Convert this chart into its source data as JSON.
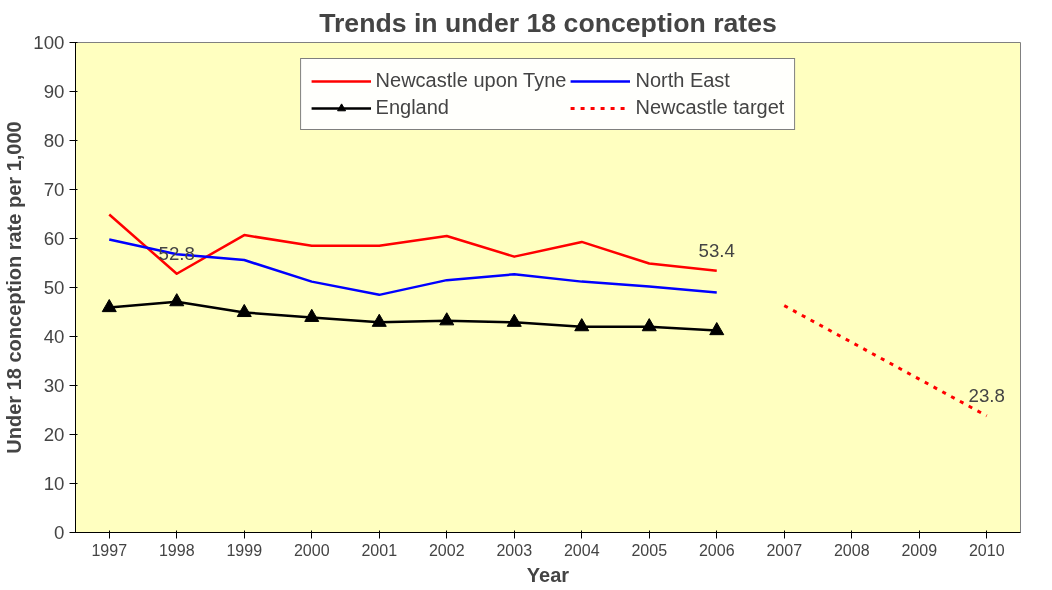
{
  "chart_data": {
    "type": "line",
    "title": "Trends in under 18 conception rates",
    "xlabel": "Year",
    "ylabel": "Under 18 conception rate per 1,000",
    "categories": [
      "1997",
      "1998",
      "1999",
      "2000",
      "2001",
      "2002",
      "2003",
      "2004",
      "2005",
      "2006",
      "2007",
      "2008",
      "2009",
      "2010"
    ],
    "series": [
      {
        "name": "Newcastle upon Tyne",
        "color": "#ff0000",
        "values": [
          64.9,
          52.8,
          60.7,
          58.5,
          58.5,
          60.5,
          56.3,
          59.3,
          54.9,
          53.4,
          null,
          null,
          null,
          null
        ],
        "value_labels": [
          null,
          "52.8",
          null,
          null,
          null,
          null,
          null,
          null,
          null,
          "53.4",
          null,
          null,
          null,
          null
        ]
      },
      {
        "name": "North East",
        "color": "#0000ff",
        "values": [
          59.8,
          56.8,
          55.6,
          51.2,
          48.5,
          51.5,
          52.7,
          51.2,
          50.2,
          49.0,
          null,
          null,
          null,
          null
        ]
      },
      {
        "name": "England",
        "color": "#000000",
        "marker": "triangle",
        "values": [
          45.9,
          47.1,
          44.9,
          43.9,
          42.9,
          43.2,
          42.9,
          42.0,
          42.0,
          41.2,
          null,
          null,
          null,
          null
        ]
      },
      {
        "name": "Newcastle target",
        "color": "#ff0000",
        "line_style": "dotted",
        "values": [
          null,
          null,
          null,
          null,
          null,
          null,
          null,
          null,
          null,
          null,
          46.3,
          38.8,
          31.3,
          23.8
        ],
        "value_labels": [
          null,
          null,
          null,
          null,
          null,
          null,
          null,
          null,
          null,
          null,
          null,
          null,
          null,
          "23.8"
        ]
      }
    ],
    "ylim": [
      0,
      100
    ],
    "yticks": [
      0,
      10,
      20,
      30,
      40,
      50,
      60,
      70,
      80,
      90,
      100
    ],
    "legend": "top",
    "grid": false,
    "marker": "none",
    "line_style": "solid"
  }
}
